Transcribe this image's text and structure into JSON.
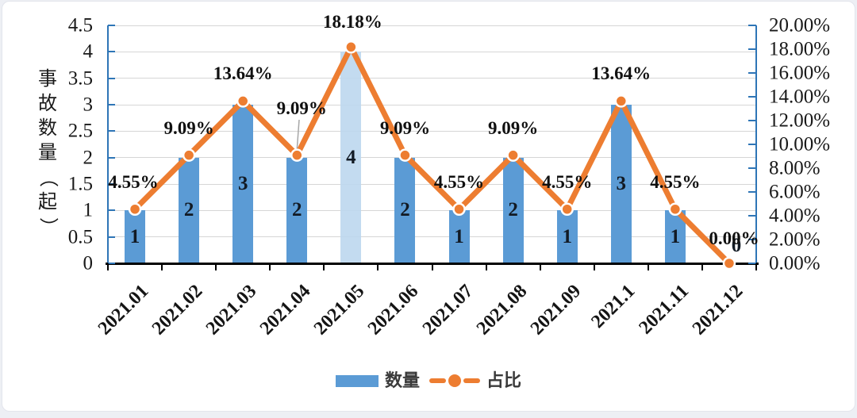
{
  "page": {
    "background": "#edeff4",
    "card_background": "#ffffff"
  },
  "chart_data": {
    "type": "bar+line combo",
    "categories": [
      "2021.01",
      "2021.02",
      "2021.03",
      "2021.04",
      "2021.05",
      "2021.06",
      "2021.07",
      "2021.08",
      "2021.09",
      "2021.1",
      "2021.11",
      "2021.12"
    ],
    "series": [
      {
        "name": "数量",
        "type": "bar",
        "axis": "left",
        "values": [
          1,
          2,
          3,
          2,
          4,
          2,
          1,
          2,
          1,
          3,
          1,
          0
        ],
        "color": "#5b9bd5",
        "highlight_index": 4,
        "highlight_color": "#bdd7ee"
      },
      {
        "name": "占比",
        "type": "line",
        "axis": "right",
        "values": [
          4.55,
          9.09,
          13.64,
          9.09,
          18.18,
          9.09,
          4.55,
          9.09,
          4.55,
          13.64,
          4.55,
          0.0
        ],
        "labels": [
          "4.55%",
          "9.09%",
          "13.64%",
          "9.09%",
          "18.18%",
          "9.09%",
          "4.55%",
          "9.09%",
          "4.55%",
          "13.64%",
          "4.55%",
          "0.00%"
        ],
        "color": "#ed7d31",
        "marker": "circle"
      }
    ],
    "y_axis_left": {
      "title": "事故数量（起）",
      "min": 0,
      "max": 4.5,
      "ticks": [
        "4.5",
        "4",
        "3.5",
        "3",
        "2.5",
        "2",
        "1.5",
        "1",
        "0.5",
        "0"
      ],
      "axis_color": "#2e75b6"
    },
    "y_axis_right": {
      "min": 0,
      "max": 20,
      "ticks": [
        "20.00%",
        "18.00%",
        "16.00%",
        "14.00%",
        "12.00%",
        "10.00%",
        "8.00%",
        "6.00%",
        "4.00%",
        "2.00%",
        "0.00%"
      ],
      "axis_color": "#2e75b6"
    },
    "x_axis": {
      "axis_color": "#000000"
    },
    "grid": true,
    "grid_color": "#d6d6d6",
    "legend": {
      "position": "bottom",
      "items": [
        {
          "label": "数量",
          "marker": "bar",
          "color": "#5b9bd5"
        },
        {
          "label": "占比",
          "marker": "line-dot",
          "color": "#ed7d31"
        }
      ]
    }
  },
  "colors": {
    "bar": "#5b9bd5",
    "bar_highlight": "#bdd7ee",
    "line": "#ed7d31",
    "axis_blue": "#2e75b6",
    "axis_black": "#000000",
    "gridline": "#d6d6d6",
    "text": "#141414"
  }
}
